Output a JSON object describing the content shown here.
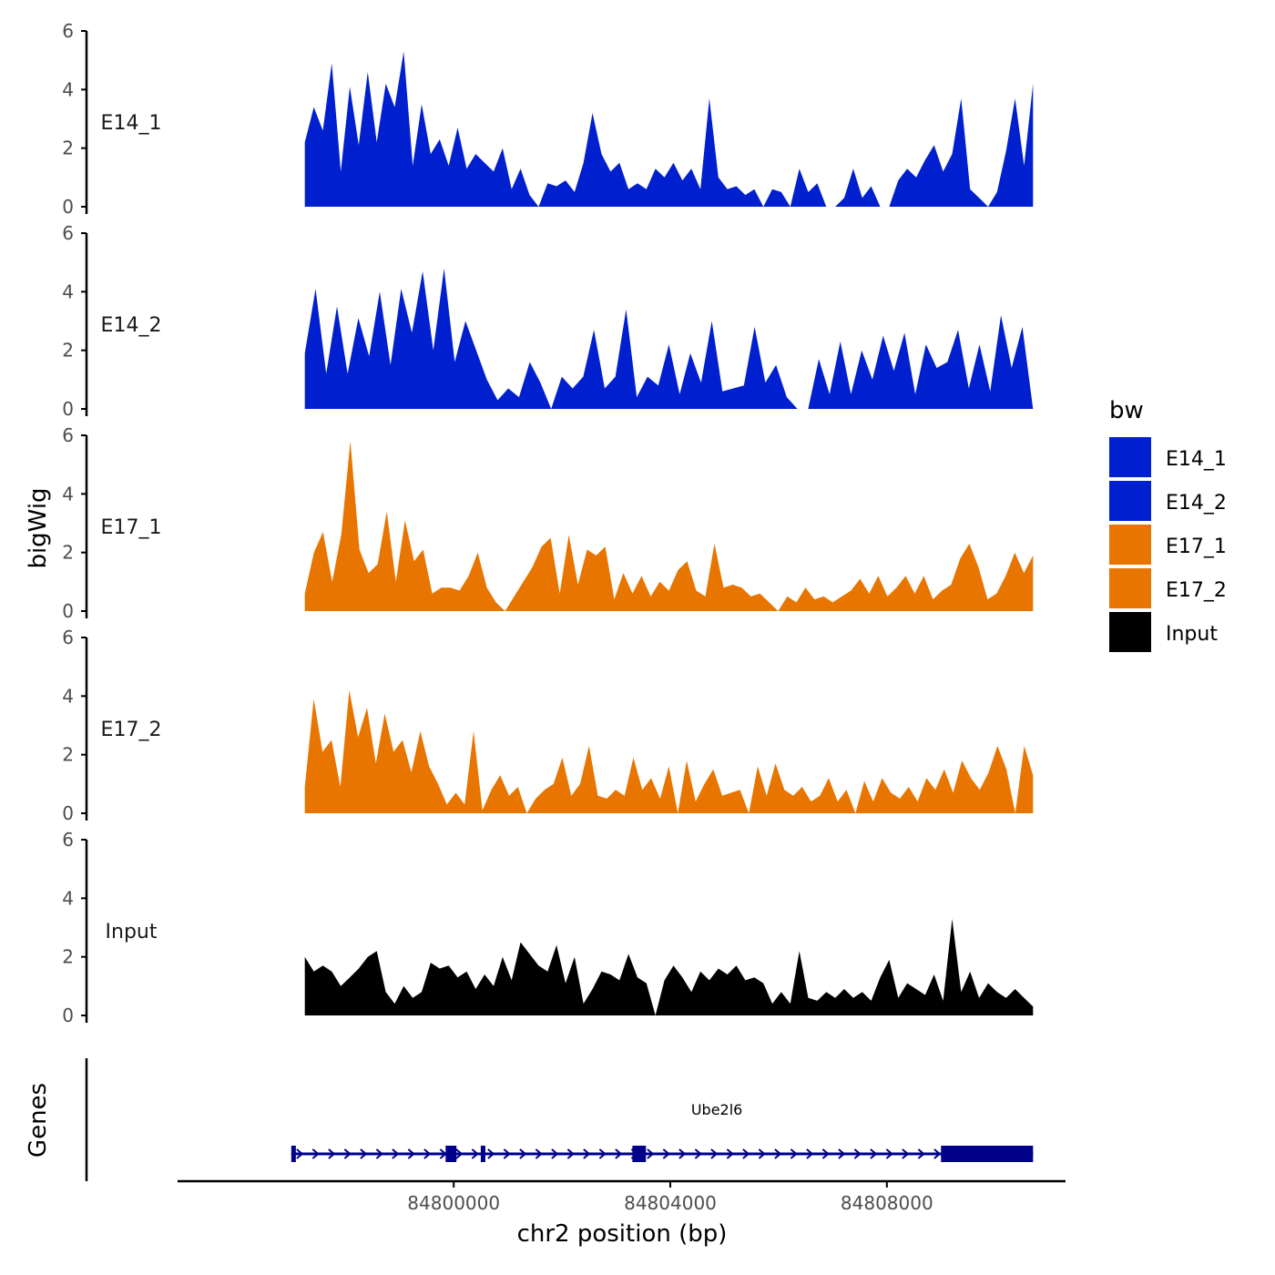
{
  "chart_data": {
    "type": "area",
    "y_axis_title": "bigWig",
    "genes_axis_title": "Genes",
    "x_axis_title": "chr2 position (bp)",
    "y_ticks": [
      "0",
      "2",
      "4",
      "6"
    ],
    "ylim": [
      0,
      6
    ],
    "xlim": [
      84794900,
      84811300
    ],
    "x_ticks": [
      {
        "value": 84800000,
        "label": "84800000"
      },
      {
        "value": 84804000,
        "label": "84804000"
      },
      {
        "value": 84808000,
        "label": "84808000"
      }
    ],
    "x_start": 84797250,
    "x_end": 84810700,
    "legend": {
      "title": "bw",
      "entries": [
        {
          "label": "E14_1",
          "color": "#0020CF"
        },
        {
          "label": "E14_2",
          "color": "#0020CF"
        },
        {
          "label": "E17_1",
          "color": "#E87500"
        },
        {
          "label": "E17_2",
          "color": "#E87500"
        },
        {
          "label": "Input",
          "color": "#000000"
        }
      ]
    },
    "series": [
      {
        "name": "E14_1",
        "color": "#0020CF",
        "values": [
          2.2,
          3.4,
          2.6,
          4.9,
          1.2,
          4.1,
          2.1,
          4.6,
          2.2,
          4.2,
          3.4,
          5.3,
          1.4,
          3.5,
          1.8,
          2.3,
          1.4,
          2.7,
          1.3,
          1.8,
          1.5,
          1.2,
          2.0,
          0.6,
          1.3,
          0.4,
          0.0,
          0.8,
          0.7,
          0.9,
          0.5,
          1.5,
          3.2,
          1.8,
          1.2,
          1.5,
          0.6,
          0.8,
          0.6,
          1.3,
          1.0,
          1.5,
          0.9,
          1.3,
          0.6,
          3.7,
          1.0,
          0.6,
          0.7,
          0.4,
          0.6,
          0.0,
          0.6,
          0.5,
          0.0,
          1.3,
          0.5,
          0.8,
          0.0,
          0.0,
          0.3,
          1.3,
          0.3,
          0.7,
          0.0,
          0.0,
          0.9,
          1.3,
          1.0,
          1.6,
          2.1,
          1.2,
          1.8,
          3.7,
          0.6,
          0.3,
          0.0,
          0.5,
          1.9,
          3.7,
          1.4,
          4.2
        ]
      },
      {
        "name": "E14_2",
        "color": "#0020CF",
        "values": [
          1.9,
          4.1,
          1.2,
          3.5,
          1.2,
          3.1,
          1.8,
          4.0,
          1.5,
          4.1,
          2.6,
          4.7,
          2.0,
          4.8,
          1.6,
          3.0,
          2.0,
          1.0,
          0.3,
          0.7,
          0.4,
          1.6,
          0.9,
          0.0,
          1.1,
          0.7,
          1.1,
          2.7,
          0.7,
          1.1,
          3.4,
          0.4,
          1.1,
          0.8,
          2.2,
          0.5,
          1.9,
          0.9,
          3.0,
          0.6,
          0.7,
          0.8,
          2.8,
          0.9,
          1.5,
          0.4,
          0.0,
          0.0,
          1.7,
          0.5,
          2.3,
          0.5,
          2.0,
          1.0,
          2.5,
          1.3,
          2.6,
          0.5,
          2.2,
          1.4,
          1.6,
          2.7,
          0.7,
          2.2,
          0.6,
          3.2,
          1.4,
          2.8,
          0.0
        ]
      },
      {
        "name": "E17_1",
        "color": "#E87500",
        "values": [
          0.6,
          2.0,
          2.7,
          1.0,
          2.6,
          5.8,
          2.1,
          1.3,
          1.6,
          3.4,
          1.0,
          3.1,
          1.7,
          2.1,
          0.6,
          0.8,
          0.8,
          0.7,
          1.2,
          2.0,
          0.8,
          0.3,
          0.0,
          0.5,
          1.0,
          1.5,
          2.2,
          2.5,
          0.6,
          2.6,
          0.9,
          2.1,
          1.9,
          2.2,
          0.4,
          1.3,
          0.6,
          1.2,
          0.5,
          1.0,
          0.7,
          1.4,
          1.7,
          0.7,
          0.5,
          2.3,
          0.8,
          0.9,
          0.8,
          0.5,
          0.6,
          0.3,
          0.0,
          0.5,
          0.3,
          0.8,
          0.4,
          0.5,
          0.3,
          0.5,
          0.7,
          1.1,
          0.6,
          1.2,
          0.5,
          0.8,
          1.2,
          0.6,
          1.2,
          0.4,
          0.7,
          0.9,
          1.8,
          2.3,
          1.5,
          0.4,
          0.6,
          1.2,
          2.0,
          1.3,
          1.9
        ]
      },
      {
        "name": "E17_2",
        "color": "#E87500",
        "values": [
          0.9,
          3.9,
          2.1,
          2.5,
          0.9,
          4.2,
          2.6,
          3.6,
          1.7,
          3.4,
          2.1,
          2.5,
          1.4,
          2.8,
          1.6,
          1.0,
          0.3,
          0.7,
          0.3,
          2.8,
          0.1,
          0.8,
          1.3,
          0.6,
          0.9,
          0.0,
          0.5,
          0.8,
          1.0,
          1.9,
          0.6,
          1.0,
          2.3,
          0.6,
          0.5,
          0.8,
          0.6,
          1.9,
          0.8,
          1.2,
          0.5,
          1.6,
          0.0,
          1.8,
          0.4,
          1.0,
          1.5,
          0.6,
          0.7,
          0.8,
          0.0,
          1.6,
          0.6,
          1.7,
          0.8,
          0.6,
          0.9,
          0.4,
          0.6,
          1.2,
          0.4,
          0.8,
          0.0,
          1.1,
          0.4,
          1.2,
          0.7,
          0.5,
          0.9,
          0.4,
          1.2,
          0.8,
          1.5,
          0.7,
          1.8,
          1.2,
          0.8,
          1.4,
          2.3,
          1.5,
          0.0,
          2.3,
          1.3
        ]
      },
      {
        "name": "Input",
        "color": "#000000",
        "values": [
          2.0,
          1.5,
          1.7,
          1.5,
          1.0,
          1.3,
          1.6,
          2.0,
          2.2,
          0.8,
          0.4,
          1.0,
          0.6,
          0.8,
          1.8,
          1.6,
          1.7,
          1.3,
          1.5,
          0.9,
          1.4,
          1.0,
          2.0,
          1.2,
          2.5,
          2.1,
          1.7,
          1.5,
          2.4,
          1.1,
          2.0,
          0.4,
          0.9,
          1.5,
          1.4,
          1.2,
          2.1,
          1.3,
          1.1,
          0.0,
          1.2,
          1.7,
          1.3,
          0.8,
          1.5,
          1.2,
          1.6,
          1.4,
          1.7,
          1.2,
          1.3,
          1.1,
          0.4,
          0.8,
          0.4,
          2.2,
          0.6,
          0.5,
          0.8,
          0.6,
          0.9,
          0.6,
          0.8,
          0.5,
          1.3,
          1.9,
          0.6,
          1.1,
          0.9,
          0.7,
          1.4,
          0.5,
          3.3,
          0.8,
          1.5,
          0.6,
          1.1,
          0.8,
          0.6,
          0.9,
          0.6,
          0.3
        ]
      }
    ],
    "gene": {
      "name": "Ube2l6",
      "start": 84797000,
      "end": 84810700,
      "strand": "+",
      "exons": [
        {
          "start": 84797000,
          "end": 84797080
        },
        {
          "start": 84799850,
          "end": 84800050
        },
        {
          "start": 84800500,
          "end": 84800570
        },
        {
          "start": 84803300,
          "end": 84803550
        },
        {
          "start": 84809000,
          "end": 84810700
        }
      ]
    }
  }
}
